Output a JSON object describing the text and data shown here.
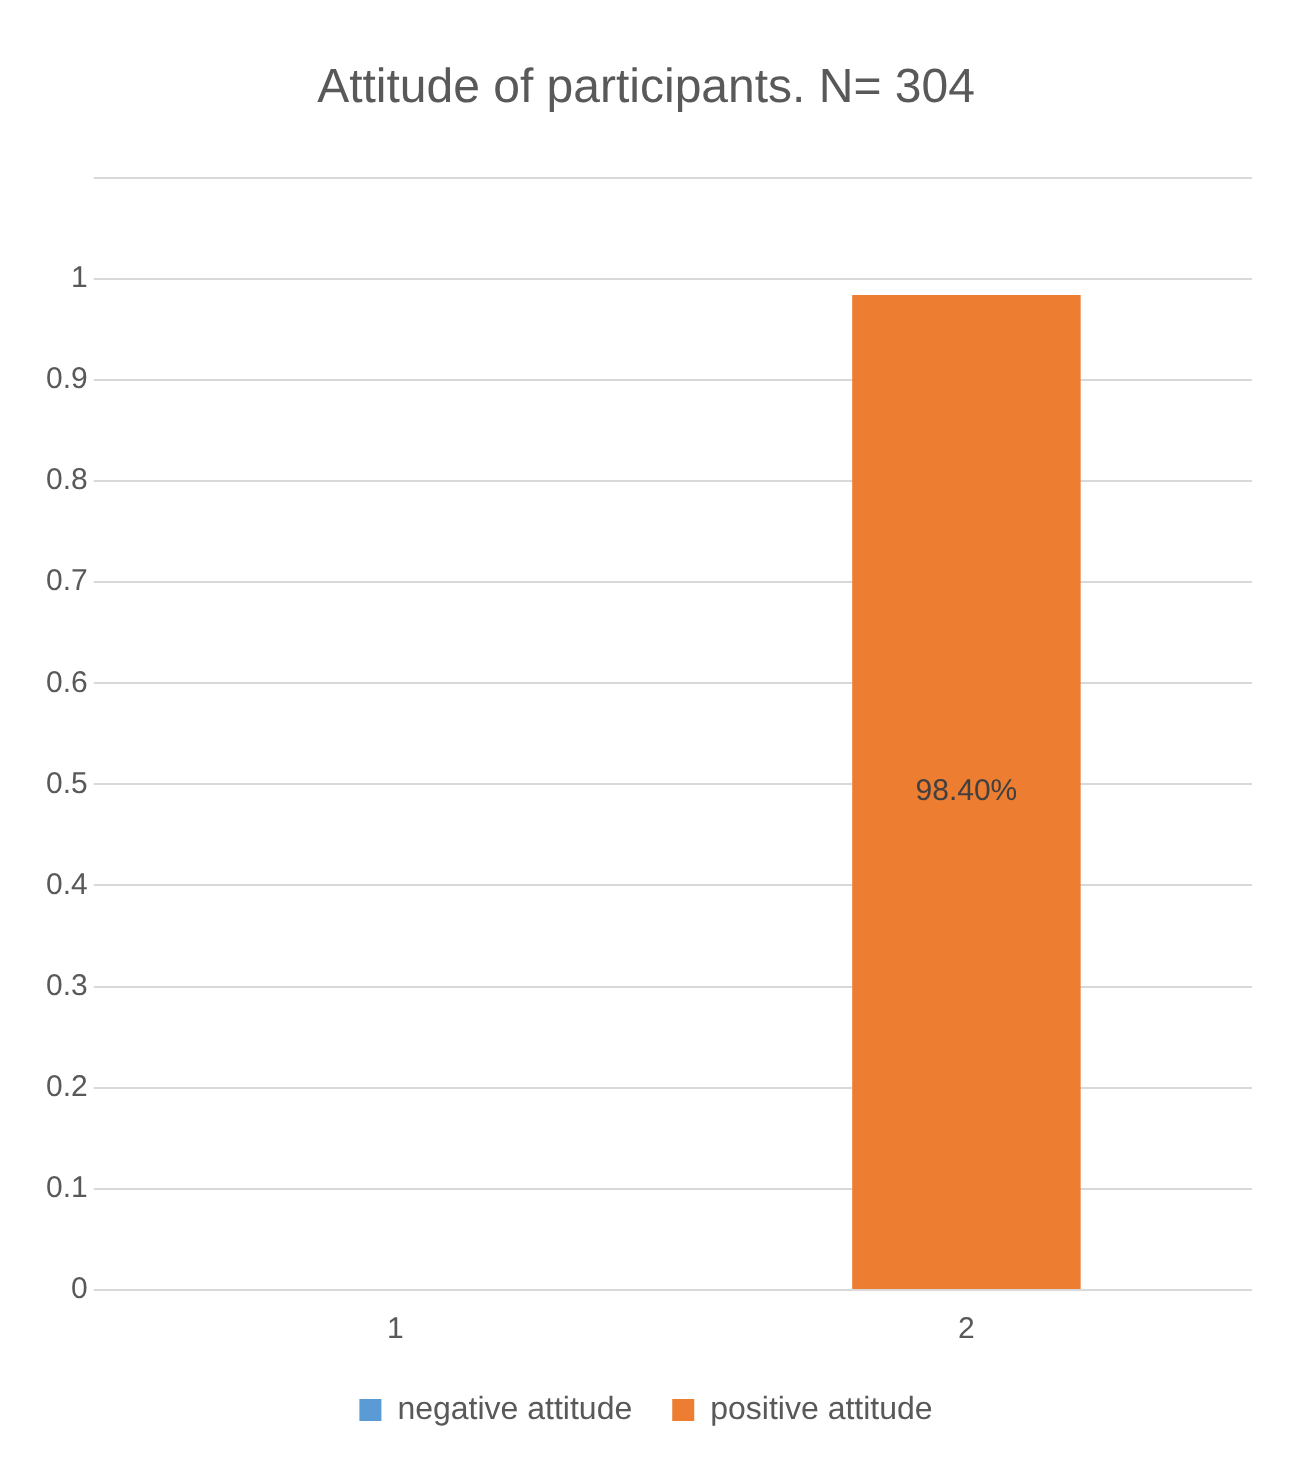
{
  "chart_data": {
    "type": "bar",
    "title": "Attitude of participants. N= 304",
    "categories": [
      "1",
      "2"
    ],
    "series": [
      {
        "name": "negative attitude",
        "color": "#5b9bd5",
        "values": [
          0,
          null
        ]
      },
      {
        "name": "positive attitude",
        "color": "#ed7d31",
        "values": [
          null,
          0.984
        ],
        "value_labels": [
          null,
          "98.40%"
        ]
      }
    ],
    "ylim": [
      0,
      1.1
    ],
    "yticks": [
      0,
      0.1,
      0.2,
      0.3,
      0.4,
      0.5,
      0.6,
      0.7,
      0.8,
      0.9,
      1,
      {
        "value": 1.1,
        "label": null
      }
    ],
    "grid": "y",
    "legend": "bottom"
  }
}
